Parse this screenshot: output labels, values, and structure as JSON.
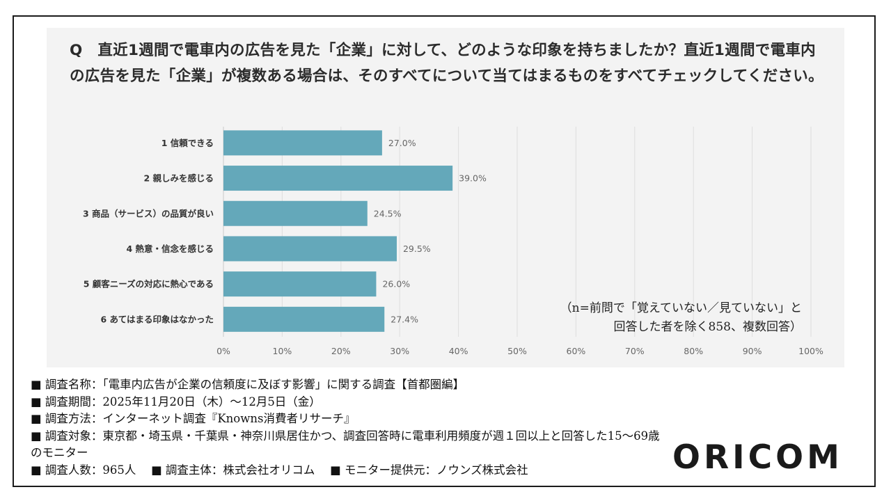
{
  "question": "Q　直近1週間で電車内の広告を見た「企業」に対して、どのような印象を持ちましたか？直近1週間で電車内の広告を見た「企業」が複数ある場合は、そのすべてについて当てはまるものをすべてチェックしてください。",
  "note": {
    "line1": "（n=前問で「覚えていない／見ていない」と",
    "line2": "回答した者を除く858、複数回答）"
  },
  "chart_data": {
    "type": "bar",
    "orientation": "horizontal",
    "categories": [
      "1 信頼できる",
      "2 親しみを感じる",
      "3 商品（サービス）の品質が良い",
      "4 熱意・信念を感じる",
      "5 顧客ニーズの対応に熱心である",
      "6 あてはまる印象はなかった"
    ],
    "values": [
      27.0,
      39.0,
      24.5,
      29.5,
      26.0,
      27.4
    ],
    "value_labels": [
      "27.0%",
      "39.0%",
      "24.5%",
      "29.5%",
      "26.0%",
      "27.4%"
    ],
    "xlim": [
      0,
      100
    ],
    "ticks": [
      0,
      10,
      20,
      30,
      40,
      50,
      60,
      70,
      80,
      90,
      100
    ],
    "tick_labels": [
      "0%",
      "10%",
      "20%",
      "30%",
      "40%",
      "50%",
      "60%",
      "70%",
      "80%",
      "90%",
      "100%"
    ],
    "bar_color": "#64a8ba",
    "grid": true
  },
  "info": {
    "name": "■ 調査名称：「電車内広告が企業の信頼度に及ぼす影響」に関する調査【首都圏編】",
    "period": "■ 調査期間：2025年11月20日（木）～12月5日（金）",
    "method": "■ 調査方法：インターネット調査『Knowns消費者リサーチ』",
    "target": "■ 調査対象：東京都・埼玉県・千葉県・神奈川県居住かつ、調査回答時に電車利用頻度が週１回以上と回答した15～69歳のモニター",
    "count": "■ 調査人数：965人",
    "sponsor": "■ 調査主体：株式会社オリコム",
    "provider": "■ モニター提供元：ノウンズ株式会社"
  },
  "logo": "ORICOM"
}
